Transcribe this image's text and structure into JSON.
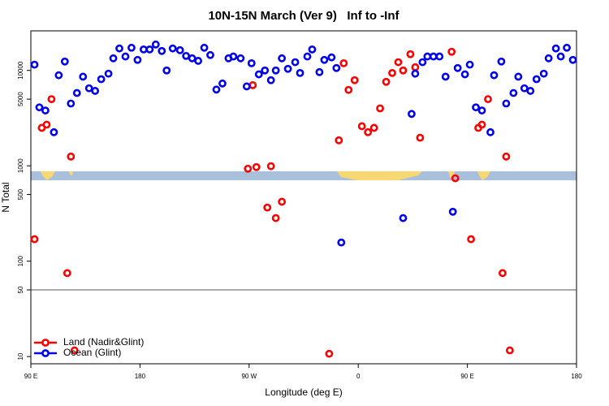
{
  "chart_data": {
    "type": "scatter",
    "title": "10N-15N March (Ver 9)   Inf to -Inf",
    "x_label": "Longitude (deg E)",
    "y_label": "N Total",
    "xlim": [
      90,
      540
    ],
    "xticks": [
      {
        "value": 90,
        "label": "90 E"
      },
      180,
      {
        "value": 270,
        "label": "90 W"
      },
      {
        "value": 360,
        "label": "0"
      },
      {
        "value": 450,
        "label": "90 E"
      },
      {
        "value": 540,
        "label": "180"
      }
    ],
    "ylim": [
      8.4,
      26000
    ],
    "yticks": [
      10,
      50,
      100,
      500,
      1000,
      5000,
      10000
    ],
    "log_y": true,
    "hline": 50,
    "legend": "lower left",
    "series": [
      {
        "name": "Land (Nadir&Glint)",
        "color": "#ff0000",
        "x": [
          93,
          99,
          103,
          107,
          123,
          120,
          126,
          269,
          273,
          276,
          285,
          288,
          292,
          297,
          336,
          344,
          348,
          352,
          357,
          363,
          368,
          373,
          378,
          383,
          388,
          393,
          397,
          403,
          407,
          411,
          437,
          440,
          453,
          459,
          462,
          467,
          482,
          479,
          485
        ],
        "values": [
          170,
          2500,
          2700,
          5000,
          1250,
          75,
          11.6,
          933,
          7000,
          970,
          365,
          990,
          283,
          420,
          10.7,
          1850,
          11900,
          6250,
          7900,
          2600,
          2250,
          2500,
          4000,
          7600,
          9400,
          12200,
          10000,
          14800,
          10800,
          1970,
          15700,
          740,
          170,
          2500,
          2700,
          5000,
          1250,
          75,
          11.6
        ]
      },
      {
        "name": "Ocean (Glint)",
        "color": "#0000ee",
        "x": [
          93,
          97,
          102,
          109,
          113,
          118,
          123,
          128,
          133,
          138,
          143,
          148,
          154,
          158,
          163,
          168,
          173,
          178,
          183,
          188,
          193,
          198,
          202,
          207,
          213,
          218,
          223,
          228,
          233,
          238,
          243,
          248,
          253,
          257,
          263,
          268,
          272,
          278,
          283,
          288,
          292,
          297,
          302,
          308,
          312,
          318,
          322,
          328,
          332,
          338,
          342,
          346,
          397,
          404,
          407,
          413,
          417,
          422,
          427,
          432,
          438,
          442,
          448,
          452,
          457,
          462,
          469,
          472,
          478,
          482,
          488,
          492,
          497,
          502,
          507,
          513,
          517,
          523,
          527,
          532,
          537
        ],
        "values": [
          11500,
          4100,
          3800,
          2250,
          8900,
          12400,
          4500,
          5800,
          8600,
          6500,
          6100,
          8100,
          9250,
          13400,
          17000,
          14000,
          17300,
          12900,
          16600,
          16600,
          18700,
          16000,
          10000,
          17000,
          16300,
          14200,
          13400,
          12600,
          17300,
          14500,
          6300,
          7300,
          13400,
          14000,
          13400,
          6800,
          11900,
          9100,
          10000,
          7900,
          10000,
          13400,
          10400,
          12200,
          9400,
          14000,
          16600,
          9600,
          12900,
          13700,
          10600,
          157,
          283,
          3500,
          9250,
          12200,
          14000,
          14000,
          14000,
          8600,
          330,
          10600,
          9100,
          11500,
          4100,
          3800,
          2250,
          8900,
          12400,
          4500,
          5800,
          8600,
          6500,
          6100,
          8100,
          9250,
          13400,
          17000,
          14000,
          17300,
          12900
        ]
      }
    ]
  }
}
